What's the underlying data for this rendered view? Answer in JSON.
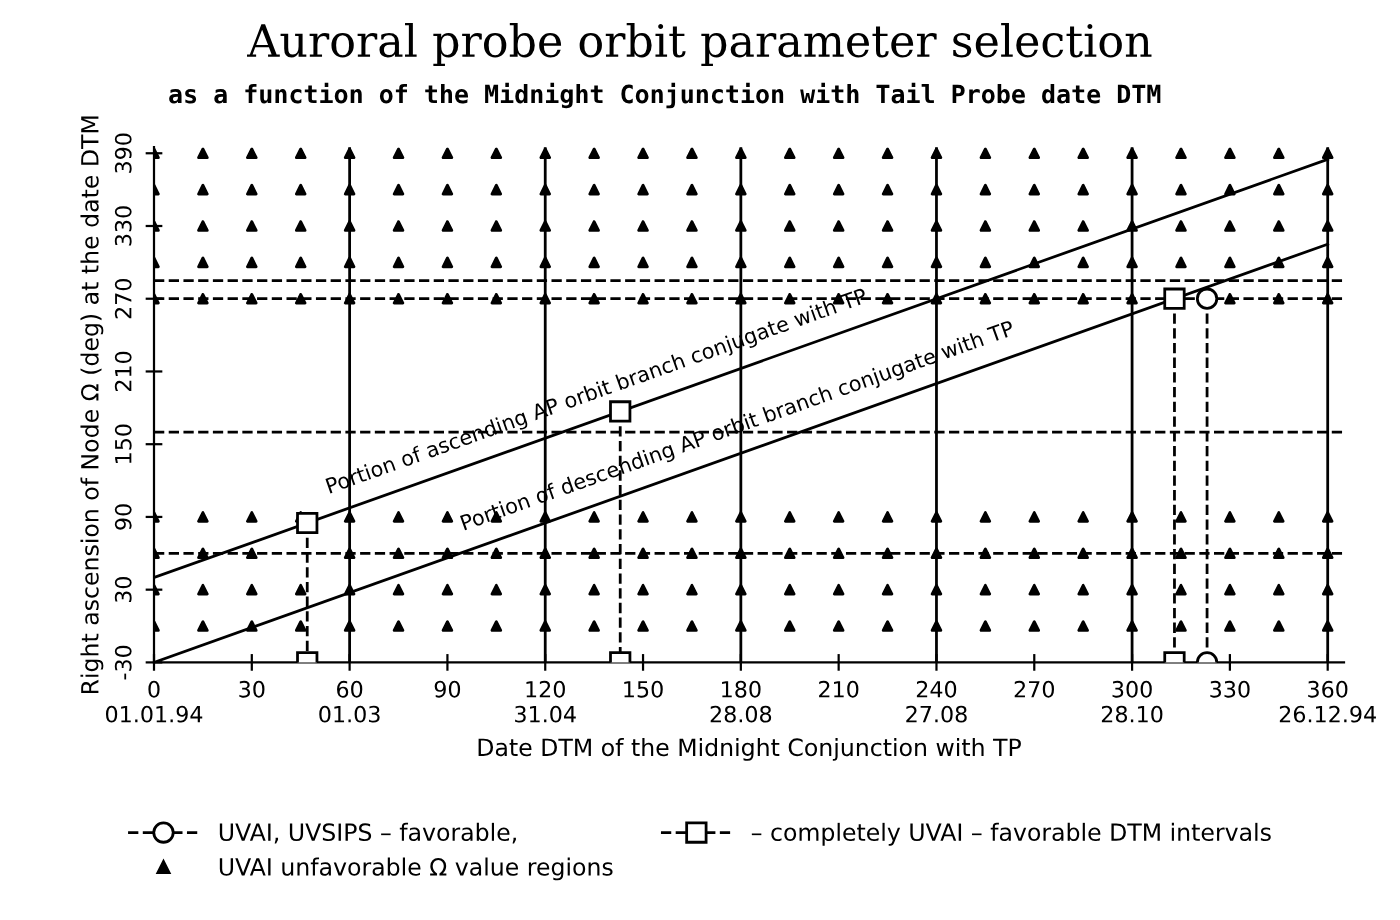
{
  "chart_data": {
    "type": "line",
    "title": "Auroral probe orbit parameter selection",
    "subtitle": "as a function of the Midnight Conjunction with Tail Probe date DTM",
    "xlabel": "Date DTM of the Midnight Conjunction with TP",
    "ylabel": "Right ascension of Node Ω (deg) at the date DTM",
    "xlim": [
      0,
      365
    ],
    "ylim": [
      -30,
      395
    ],
    "xticks": [
      {
        "value": 0,
        "label": "0\n01.01.94"
      },
      30,
      {
        "value": 60,
        "label": "60\n01.03"
      },
      90,
      {
        "value": 120,
        "label": "120\n31.04"
      },
      150,
      {
        "value": 180,
        "label": "180\n28.08"
      },
      210,
      {
        "value": 240,
        "label": "240\n27.08"
      },
      270,
      {
        "value": 300,
        "label": "300\n28.10"
      },
      330,
      {
        "value": 360,
        "label": "360\n26.12.94"
      }
    ],
    "yticks": [
      -30,
      30,
      90,
      150,
      210,
      270,
      330,
      390
    ],
    "grid": false,
    "legend": "bottom",
    "ref_lines": [
      {
        "axis": "x",
        "value": 60,
        "color": "#000000",
        "line_style": "solid"
      },
      {
        "axis": "x",
        "value": 120,
        "color": "#000000",
        "line_style": "solid"
      },
      {
        "axis": "x",
        "value": 180,
        "color": "#000000",
        "line_style": "solid"
      },
      {
        "axis": "x",
        "value": 240,
        "color": "#000000",
        "line_style": "solid"
      },
      {
        "axis": "x",
        "value": 300,
        "color": "#000000",
        "line_style": "solid"
      },
      {
        "axis": "x",
        "value": 360,
        "color": "#000000",
        "line_style": "solid"
      },
      {
        "axis": "y",
        "value": 285,
        "color": "#000000",
        "line_style": "dashed"
      },
      {
        "axis": "y",
        "value": 270,
        "color": "#000000",
        "line_style": "dashed"
      },
      {
        "axis": "y",
        "value": 160,
        "color": "#000000",
        "line_style": "dashed"
      },
      {
        "axis": "y",
        "value": 60,
        "color": "#000000",
        "line_style": "dashed"
      }
    ],
    "series": [
      {
        "name": "Portion of ascending AP orbit branch conjugate with TP",
        "color": "#000000",
        "line_style": "solid",
        "x": [
          0,
          360
        ],
        "values": [
          40,
          385
        ]
      },
      {
        "name": "Portion of descending AP orbit branch conjugate with TP",
        "color": "#000000",
        "line_style": "solid",
        "x": [
          0,
          360
        ],
        "values": [
          -30,
          315
        ]
      },
      {
        "name": "UVAI, UVSIPS – favorable,",
        "type": "line",
        "color": "#000000",
        "line_style": "dashed",
        "marker": "circle",
        "x": [
          323,
          323
        ],
        "values": [
          270,
          -30
        ]
      },
      {
        "name": "– completely UVAI – favorable DTM intervals",
        "type": "line",
        "color": "#000000",
        "line_style": "dashed",
        "marker": "square",
        "x": [
          47,
          47
        ],
        "values": [
          85,
          -30
        ]
      },
      {
        "type": "line",
        "color": "#000000",
        "line_style": "dashed",
        "marker": "square",
        "x": [
          143,
          143
        ],
        "values": [
          177,
          -30
        ]
      },
      {
        "type": "line",
        "color": "#000000",
        "line_style": "dashed",
        "marker": "square",
        "x": [
          313,
          313
        ],
        "values": [
          270,
          -30
        ]
      },
      {
        "name": "UVAI unfavorable Ω value regions",
        "type": "scatter",
        "color": "#000000",
        "marker": "triangle",
        "x": [
          0,
          15,
          30,
          45,
          60,
          75,
          90,
          105,
          120,
          135,
          150,
          165,
          180,
          195,
          210,
          225,
          240,
          255,
          270,
          285,
          300,
          315,
          330,
          345,
          360,
          0,
          15,
          30,
          45,
          60,
          75,
          90,
          105,
          120,
          135,
          150,
          165,
          180,
          195,
          210,
          225,
          240,
          255,
          270,
          285,
          300,
          315,
          330,
          345,
          360,
          0,
          15,
          30,
          60,
          75,
          90,
          105,
          120,
          135,
          150,
          165,
          180,
          195,
          210,
          225,
          240,
          255,
          270,
          285,
          300,
          315,
          330,
          345,
          360,
          0,
          15,
          30,
          45,
          60,
          75,
          90,
          105,
          120,
          135,
          150,
          165,
          180,
          195,
          210,
          225,
          240,
          255,
          270,
          285,
          300,
          315,
          330,
          345,
          360,
          0,
          15,
          30,
          45,
          60,
          75,
          90,
          105,
          120,
          135,
          150,
          165,
          180,
          195,
          210,
          225,
          240,
          255,
          270,
          285,
          300,
          330,
          345,
          360,
          0,
          15,
          30,
          45,
          60,
          75,
          90,
          105,
          120,
          135,
          150,
          165,
          180,
          195,
          210,
          225,
          240,
          255,
          270,
          285,
          300,
          315,
          330,
          345,
          360,
          0,
          15,
          30,
          45,
          60,
          75,
          90,
          105,
          120,
          135,
          150,
          165,
          180,
          195,
          210,
          225,
          240,
          255,
          270,
          285,
          300,
          315,
          330,
          345,
          360,
          0,
          15,
          30,
          45,
          60,
          75,
          90,
          105,
          120,
          135,
          150,
          165,
          180,
          195,
          210,
          225,
          240,
          255,
          270,
          285,
          300,
          315,
          330,
          345,
          360,
          0,
          15,
          30,
          45,
          60,
          75,
          90,
          105,
          120,
          135,
          150,
          165,
          180,
          195,
          210,
          225,
          240,
          255,
          270,
          285,
          300,
          315,
          330,
          345,
          360
        ],
        "values": [
          0,
          0,
          0,
          0,
          0,
          0,
          0,
          0,
          0,
          0,
          0,
          0,
          0,
          0,
          0,
          0,
          0,
          0,
          0,
          0,
          0,
          0,
          0,
          0,
          0,
          30,
          30,
          30,
          30,
          30,
          30,
          30,
          30,
          30,
          30,
          30,
          30,
          30,
          30,
          30,
          30,
          30,
          30,
          30,
          30,
          30,
          30,
          30,
          30,
          30,
          60,
          60,
          60,
          60,
          60,
          60,
          60,
          60,
          60,
          60,
          60,
          60,
          60,
          60,
          60,
          60,
          60,
          60,
          60,
          60,
          60,
          60,
          60,
          60,
          90,
          90,
          90,
          90,
          90,
          90,
          90,
          90,
          90,
          90,
          90,
          90,
          90,
          90,
          90,
          90,
          90,
          90,
          90,
          90,
          90,
          90,
          90,
          90,
          90,
          270,
          270,
          270,
          270,
          270,
          270,
          270,
          270,
          270,
          270,
          270,
          270,
          270,
          270,
          270,
          270,
          270,
          270,
          270,
          270,
          270,
          270,
          270,
          270,
          300,
          300,
          300,
          300,
          300,
          300,
          300,
          300,
          300,
          300,
          300,
          300,
          300,
          300,
          300,
          300,
          300,
          300,
          300,
          300,
          300,
          300,
          300,
          300,
          300,
          330,
          330,
          330,
          330,
          330,
          330,
          330,
          330,
          330,
          330,
          330,
          330,
          330,
          330,
          330,
          330,
          330,
          330,
          330,
          330,
          330,
          330,
          330,
          330,
          330,
          360,
          360,
          360,
          360,
          360,
          360,
          360,
          360,
          360,
          360,
          360,
          360,
          360,
          360,
          360,
          360,
          360,
          360,
          360,
          360,
          360,
          360,
          360,
          360,
          360,
          390,
          390,
          390,
          390,
          390,
          390,
          390,
          390,
          390,
          390,
          390,
          390,
          390,
          390,
          390,
          390,
          390,
          390,
          390,
          390,
          390,
          390,
          390,
          390,
          390
        ]
      }
    ]
  }
}
